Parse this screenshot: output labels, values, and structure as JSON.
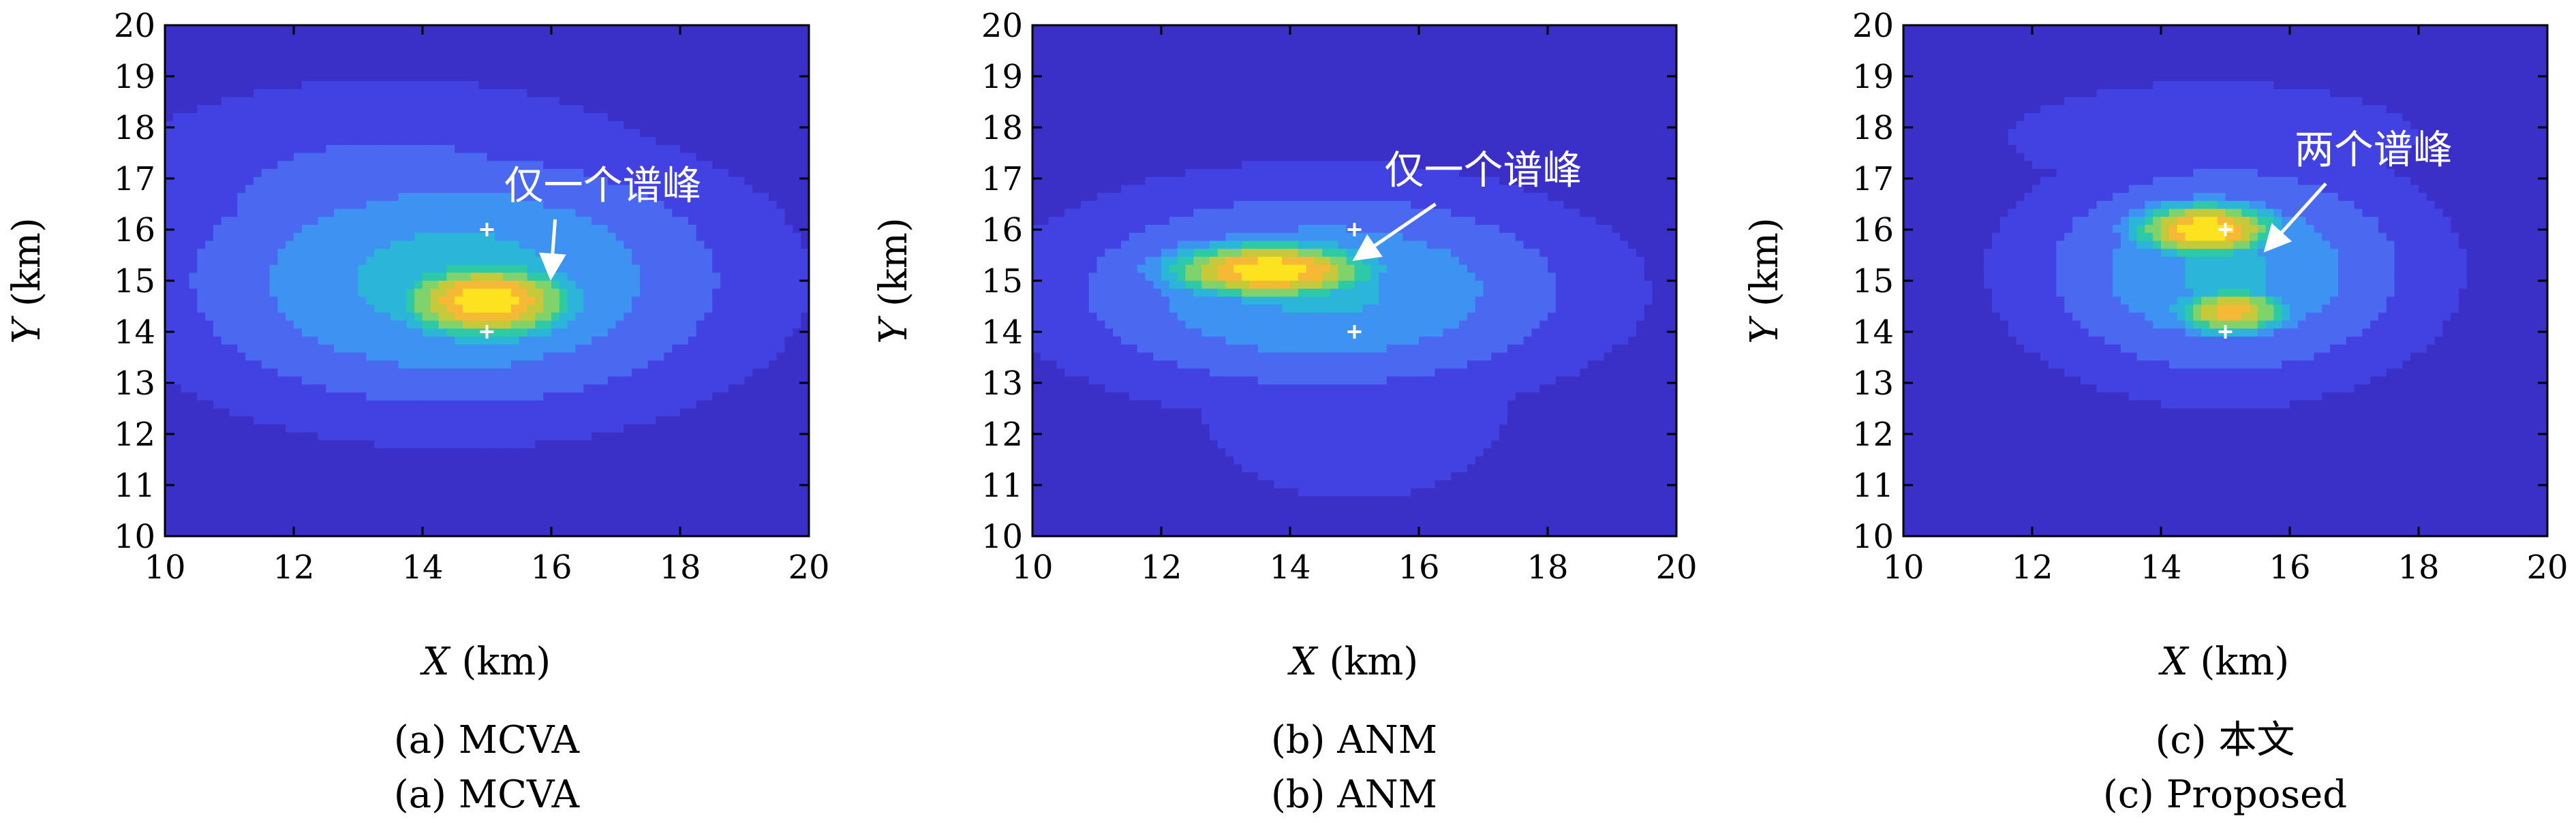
{
  "chart_data": [
    {
      "type": "heatmap",
      "panel": "a",
      "caption_zh": "(a) MCVA",
      "caption_en": "(a) MCVA",
      "xlabel_var": "X",
      "xlabel_unit": " (km)",
      "ylabel_var": "Y",
      "ylabel_unit": " (km)",
      "xlim": [
        10,
        20
      ],
      "ylim": [
        10,
        20
      ],
      "xticks": [
        "10",
        "12",
        "14",
        "16",
        "18",
        "20"
      ],
      "yticks": [
        "10",
        "11",
        "12",
        "13",
        "14",
        "15",
        "16",
        "17",
        "18",
        "19",
        "20"
      ],
      "sources": [
        {
          "x": 15,
          "y": 16
        },
        {
          "x": 15,
          "y": 14
        }
      ],
      "peaks": [
        {
          "x": 15.0,
          "y": 14.6,
          "sx": 1.1,
          "sy": 0.6,
          "amp": 1.0
        }
      ],
      "background": [
        {
          "x": 14.5,
          "y": 15.0,
          "sx": 3.2,
          "sy": 1.9,
          "amp": 0.45
        },
        {
          "x": 13.5,
          "y": 16.5,
          "sx": 3.5,
          "sy": 1.8,
          "amp": 0.25
        }
      ],
      "annotation": {
        "text": "仅一个谱峰",
        "x": 16.8,
        "y": 16.6,
        "arrow_to": {
          "x": 16.0,
          "y": 15.2
        }
      }
    },
    {
      "type": "heatmap",
      "panel": "b",
      "caption_zh": "(b) ANM",
      "caption_en": "(b) ANM",
      "xlabel_var": "X",
      "xlabel_unit": " (km)",
      "ylabel_var": "Y",
      "ylabel_unit": " (km)",
      "xlim": [
        10,
        20
      ],
      "ylim": [
        10,
        20
      ],
      "xticks": [
        "10",
        "12",
        "14",
        "16",
        "18",
        "20"
      ],
      "yticks": [
        "10",
        "11",
        "12",
        "13",
        "14",
        "15",
        "16",
        "17",
        "18",
        "19",
        "20"
      ],
      "sources": [
        {
          "x": 15,
          "y": 16
        },
        {
          "x": 15,
          "y": 14
        }
      ],
      "peaks": [
        {
          "x": 13.7,
          "y": 15.2,
          "sx": 1.3,
          "sy": 0.45,
          "amp": 1.0
        }
      ],
      "background": [
        {
          "x": 14.5,
          "y": 14.8,
          "sx": 3.0,
          "sy": 1.5,
          "amp": 0.42
        },
        {
          "x": 15.0,
          "y": 12.5,
          "sx": 2.0,
          "sy": 1.5,
          "amp": 0.2
        }
      ],
      "annotation": {
        "text": "仅一个谱峰",
        "x": 17.0,
        "y": 16.9,
        "arrow_to": {
          "x": 15.1,
          "y": 15.5
        }
      }
    },
    {
      "type": "heatmap",
      "panel": "c",
      "caption_zh": "(c) 本文",
      "caption_en": "(c) Proposed",
      "xlabel_var": "X",
      "xlabel_unit": " (km)",
      "ylabel_var": "Y",
      "ylabel_unit": " (km)",
      "xlim": [
        10,
        20
      ],
      "ylim": [
        10,
        20
      ],
      "xticks": [
        "10",
        "12",
        "14",
        "16",
        "18",
        "20"
      ],
      "yticks": [
        "10",
        "11",
        "12",
        "13",
        "14",
        "15",
        "16",
        "17",
        "18",
        "19",
        "20"
      ],
      "sources": [
        {
          "x": 15,
          "y": 16
        },
        {
          "x": 15,
          "y": 14
        }
      ],
      "peaks": [
        {
          "x": 14.7,
          "y": 16.0,
          "sx": 0.9,
          "sy": 0.42,
          "amp": 1.0
        },
        {
          "x": 15.1,
          "y": 14.4,
          "sx": 0.75,
          "sy": 0.38,
          "amp": 0.85
        }
      ],
      "background": [
        {
          "x": 15.0,
          "y": 15.2,
          "sx": 2.2,
          "sy": 1.6,
          "amp": 0.42
        },
        {
          "x": 14.8,
          "y": 17.8,
          "sx": 3.5,
          "sy": 1.2,
          "amp": 0.15
        }
      ],
      "annotation": {
        "text": "两个谱峰",
        "x": 17.3,
        "y": 17.3,
        "arrow_to": {
          "x": 15.7,
          "y": 15.7
        }
      }
    }
  ],
  "colormap": [
    "#3a2fc7",
    "#4242e2",
    "#4a68f0",
    "#3d92f2",
    "#2bb5d9",
    "#2ecaa8",
    "#7fd36a",
    "#c6c93a",
    "#f5b935",
    "#fde31f"
  ],
  "marker_color": "#ffffff"
}
